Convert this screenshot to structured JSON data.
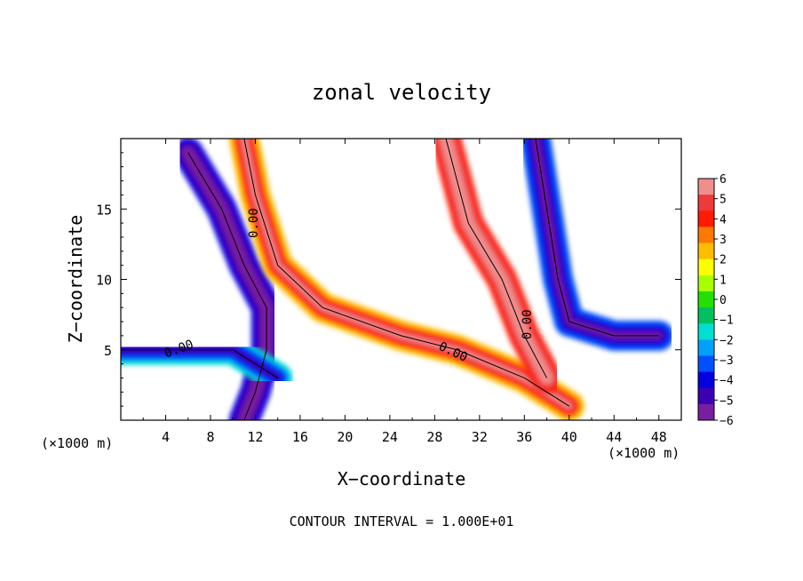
{
  "chart_data": {
    "type": "heatmap",
    "title": "zonal velocity",
    "xlabel": "X−coordinate",
    "ylabel": "Z−coordinate",
    "x_unit_note": "(×1000 m)",
    "xlim": [
      0,
      50
    ],
    "ylim": [
      0,
      20
    ],
    "x_ticks": [
      "4",
      "8",
      "12",
      "16",
      "20",
      "24",
      "28",
      "32",
      "36",
      "40",
      "44",
      "48"
    ],
    "y_ticks": [
      "5",
      "10",
      "15"
    ],
    "contour_interval_text": "CONTOUR INTERVAL = 1.000E+01",
    "contour_label": "0.00",
    "colorbar": {
      "labels": [
        "6",
        "5",
        "4",
        "3",
        "2",
        "1",
        "0",
        "−1",
        "−2",
        "−3",
        "−4",
        "−5",
        "−6"
      ],
      "min": -6,
      "max": 6,
      "colors": [
        "#f08e8e",
        "#ee3a3a",
        "#ff1a00",
        "#ff7800",
        "#ffbd00",
        "#ffff00",
        "#a8ff00",
        "#24df00",
        "#00c060",
        "#00e0d0",
        "#00a0ff",
        "#0050ff",
        "#0000e0",
        "#3c00b4",
        "#781ea0"
      ]
    },
    "features": [
      {
        "name": "upper-left jet",
        "points": [
          [
            6,
            19
          ],
          [
            9,
            15
          ],
          [
            11,
            11
          ],
          [
            13,
            8
          ],
          [
            13,
            5
          ],
          [
            12,
            2
          ],
          [
            11,
            0
          ]
        ],
        "value": -5
      },
      {
        "name": "central warm band",
        "points": [
          [
            11,
            20
          ],
          [
            12,
            16
          ],
          [
            14,
            11
          ],
          [
            18,
            8
          ],
          [
            25,
            6
          ],
          [
            30,
            5
          ],
          [
            36,
            3
          ],
          [
            40,
            1
          ]
        ],
        "value": 4
      },
      {
        "name": "right cold column",
        "points": [
          [
            37,
            20
          ],
          [
            38,
            15
          ],
          [
            39,
            10
          ],
          [
            40,
            7
          ],
          [
            44,
            6
          ],
          [
            48,
            6
          ]
        ],
        "value": -4
      },
      {
        "name": "right warm column",
        "points": [
          [
            29,
            20
          ],
          [
            31,
            14
          ],
          [
            34,
            10
          ],
          [
            36,
            6
          ],
          [
            38,
            3
          ]
        ],
        "value": 5
      },
      {
        "name": "left low-level flow",
        "points": [
          [
            0,
            5
          ],
          [
            5,
            5
          ],
          [
            10,
            5
          ],
          [
            14,
            3
          ]
        ],
        "value": -3
      }
    ]
  }
}
